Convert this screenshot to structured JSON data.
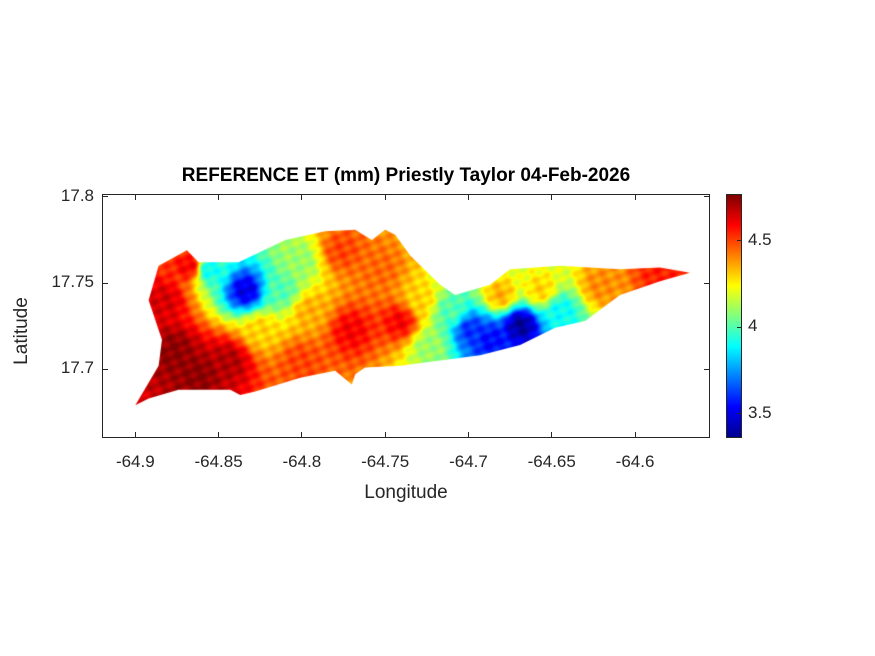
{
  "chart_data": {
    "type": "heatmap",
    "title": "REFERENCE ET (mm) Priestly Taylor 04-Feb-2026",
    "xlabel": "Longitude",
    "ylabel": "Latitude",
    "xlim": [
      -64.92,
      -64.555
    ],
    "ylim": [
      17.66,
      17.8017
    ],
    "xticks": [
      -64.9,
      -64.85,
      -64.8,
      -64.75,
      -64.7,
      -64.65,
      -64.6
    ],
    "xtick_labels": [
      "-64.9",
      "-64.85",
      "-64.8",
      "-64.75",
      "-64.7",
      "-64.65",
      "-64.6"
    ],
    "yticks": [
      17.7,
      17.75,
      17.8
    ],
    "ytick_labels": [
      "17.7",
      "17.75",
      "17.8"
    ],
    "colormap": "jet",
    "clim": [
      3.36,
      4.77
    ],
    "colorbar": {
      "ticks": [
        3.5,
        4,
        4.5
      ],
      "tick_labels": [
        "3.5",
        "4",
        "4.5"
      ],
      "location": "right"
    },
    "grid": false,
    "region_outline": [
      [
        -64.9,
        17.679
      ],
      [
        -64.886,
        17.702
      ],
      [
        -64.884,
        17.717
      ],
      [
        -64.892,
        17.74
      ],
      [
        -64.886,
        17.76
      ],
      [
        -64.869,
        17.769
      ],
      [
        -64.862,
        17.762
      ],
      [
        -64.838,
        17.762
      ],
      [
        -64.81,
        17.775
      ],
      [
        -64.786,
        17.78
      ],
      [
        -64.768,
        17.781
      ],
      [
        -64.758,
        17.775
      ],
      [
        -64.75,
        17.781
      ],
      [
        -64.744,
        17.778
      ],
      [
        -64.735,
        17.766
      ],
      [
        -64.717,
        17.749
      ],
      [
        -64.708,
        17.743
      ],
      [
        -64.687,
        17.749
      ],
      [
        -64.675,
        17.758
      ],
      [
        -64.645,
        17.76
      ],
      [
        -64.609,
        17.758
      ],
      [
        -64.585,
        17.759
      ],
      [
        -64.567,
        17.756
      ],
      [
        -64.585,
        17.751
      ],
      [
        -64.609,
        17.743
      ],
      [
        -64.63,
        17.728
      ],
      [
        -64.648,
        17.724
      ],
      [
        -64.669,
        17.714
      ],
      [
        -64.693,
        17.708
      ],
      [
        -64.717,
        17.705
      ],
      [
        -64.741,
        17.702
      ],
      [
        -64.762,
        17.701
      ],
      [
        -64.768,
        17.697
      ],
      [
        -64.77,
        17.691
      ],
      [
        -64.78,
        17.699
      ],
      [
        -64.801,
        17.695
      ],
      [
        -64.828,
        17.687
      ],
      [
        -64.837,
        17.685
      ],
      [
        -64.843,
        17.688
      ],
      [
        -64.874,
        17.688
      ],
      [
        -64.892,
        17.683
      ]
    ],
    "samples": [
      [
        -64.883,
        17.74,
        4.65
      ],
      [
        -64.877,
        17.711,
        4.75
      ],
      [
        -64.862,
        17.697,
        4.75
      ],
      [
        -64.844,
        17.705,
        4.7
      ],
      [
        -64.868,
        17.76,
        4.6
      ],
      [
        -64.834,
        17.746,
        3.5
      ],
      [
        -64.856,
        17.758,
        3.9
      ],
      [
        -64.813,
        17.746,
        4.0
      ],
      [
        -64.801,
        17.763,
        4.1
      ],
      [
        -64.825,
        17.723,
        4.3
      ],
      [
        -64.795,
        17.734,
        4.35
      ],
      [
        -64.771,
        17.723,
        4.6
      ],
      [
        -64.741,
        17.728,
        4.6
      ],
      [
        -64.753,
        17.758,
        4.45
      ],
      [
        -64.777,
        17.769,
        4.5
      ],
      [
        -64.801,
        17.705,
        4.5
      ],
      [
        -64.729,
        17.74,
        4.3
      ],
      [
        -64.711,
        17.734,
        4.0
      ],
      [
        -64.699,
        17.723,
        3.6
      ],
      [
        -64.669,
        17.726,
        3.4
      ],
      [
        -64.687,
        17.717,
        3.55
      ],
      [
        -64.645,
        17.734,
        3.9
      ],
      [
        -64.657,
        17.746,
        4.3
      ],
      [
        -64.621,
        17.749,
        4.4
      ],
      [
        -64.585,
        17.756,
        4.55
      ],
      [
        -64.723,
        17.714,
        4.1
      ],
      [
        -64.681,
        17.743,
        4.35
      ]
    ]
  }
}
